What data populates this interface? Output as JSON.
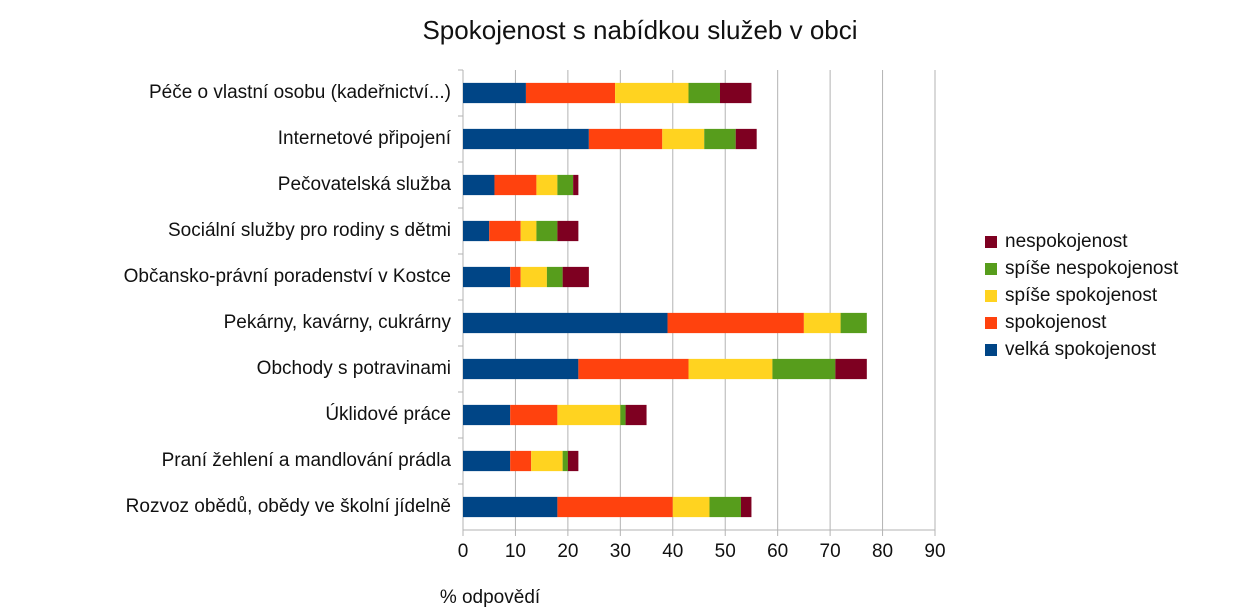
{
  "chart_data": {
    "type": "stacked-barh",
    "title": "Spokojenost s nabídkou služeb v obci",
    "xlabel": "% odpovědí",
    "categories": [
      "Péče o vlastní osobu (kadeřnictví...)",
      "Internetové připojení",
      "Pečovatelská služba",
      "Sociální služby pro rodiny s dětmi",
      "Občansko-právní poradenství v Kostce",
      "Pekárny, kavárny, cukrárny",
      "Obchody s potravinami",
      "Úklidové práce",
      "Praní žehlení a mandlování prádla",
      "Rozvoz obědů, obědy ve školní jídelně"
    ],
    "series": [
      {
        "name": "velká spokojenost",
        "color": "#004586",
        "values": [
          12,
          24,
          6,
          5,
          9,
          39,
          22,
          9,
          9,
          18
        ]
      },
      {
        "name": "spokojenost",
        "color": "#ff420e",
        "values": [
          17,
          14,
          8,
          6,
          2,
          26,
          21,
          9,
          4,
          22
        ]
      },
      {
        "name": "spíše spokojenost",
        "color": "#ffd320",
        "values": [
          14,
          8,
          4,
          3,
          5,
          7,
          16,
          12,
          6,
          7
        ]
      },
      {
        "name": "spíše nespokojenost",
        "color": "#579d1c",
        "values": [
          6,
          6,
          3,
          4,
          3,
          5,
          12,
          1,
          1,
          6
        ]
      },
      {
        "name": "nespokojenost",
        "color": "#7e0021",
        "values": [
          6,
          4,
          1,
          4,
          5,
          0,
          6,
          4,
          2,
          2
        ]
      }
    ],
    "xlim": [
      0,
      90
    ],
    "xticks": [
      0,
      10,
      20,
      30,
      40,
      50,
      60,
      70,
      80,
      90
    ],
    "grid": true,
    "legend": "right"
  }
}
